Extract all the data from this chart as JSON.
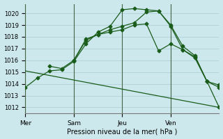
{
  "title": "Pression niveau de la mer( hPa )",
  "bg_color": "#cce8ec",
  "grid_color": "#aaccd4",
  "line_color": "#1a5c1a",
  "xlim": [
    0,
    96
  ],
  "ylim": [
    1011.5,
    1020.8
  ],
  "yticks": [
    1012,
    1013,
    1014,
    1015,
    1016,
    1017,
    1018,
    1019,
    1020
  ],
  "xtick_positions": [
    0,
    24,
    48,
    72
  ],
  "xtick_labels": [
    "Mer",
    "Sam",
    "Jeu",
    "Ven"
  ],
  "vlines": [
    0,
    24,
    48,
    72
  ],
  "lines": [
    {
      "x": [
        0,
        6,
        12,
        18,
        24,
        30,
        36,
        42,
        48,
        54,
        60,
        66,
        72,
        78,
        84,
        90,
        96
      ],
      "y": [
        1013.7,
        1014.5,
        1015.1,
        1015.2,
        1015.9,
        1017.4,
        1018.4,
        1018.9,
        1020.3,
        1020.4,
        1020.3,
        1020.2,
        1018.9,
        1016.9,
        1016.3,
        1014.2,
        1012.0
      ],
      "marker": true,
      "ms": 2.5
    },
    {
      "x": [
        12,
        18,
        24,
        30,
        36,
        42,
        48,
        54,
        60,
        66,
        72,
        78,
        84,
        90,
        96
      ],
      "y": [
        1015.5,
        1015.3,
        1016.0,
        1017.8,
        1018.2,
        1018.6,
        1018.9,
        1019.2,
        1020.1,
        1020.2,
        1019.0,
        1017.2,
        1016.4,
        1014.2,
        1013.7
      ],
      "marker": true,
      "ms": 2.5
    },
    {
      "x": [
        24,
        30,
        36,
        42,
        48,
        54,
        60,
        66,
        72,
        78,
        84,
        90,
        96
      ],
      "y": [
        1016.0,
        1017.7,
        1018.2,
        1018.4,
        1018.6,
        1019.0,
        1019.1,
        1016.8,
        1017.4,
        1016.9,
        1016.2,
        1014.2,
        1013.9
      ],
      "marker": true,
      "ms": 2.5
    },
    {
      "x": [
        0,
        96
      ],
      "y": [
        1015.1,
        1012.0
      ],
      "marker": false,
      "ms": 0
    }
  ]
}
